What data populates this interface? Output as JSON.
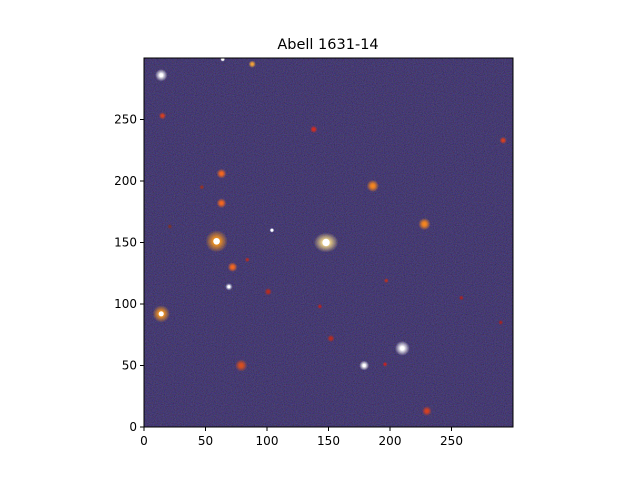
{
  "figure": {
    "title": "Abell 1631-14",
    "x_ticks": [
      "0",
      "50",
      "100",
      "150",
      "200",
      "250"
    ],
    "y_ticks": [
      "0",
      "50",
      "100",
      "150",
      "200",
      "250"
    ],
    "x_range": [
      0,
      300
    ],
    "y_range": [
      0,
      300
    ],
    "colors": {
      "sky_background": "#0d0a22",
      "noise_blue": "#2a2a8a",
      "star_white": "#ffffff",
      "galaxy_orange": "#ff8a1a",
      "galaxy_red": "#d8281a"
    },
    "sources": [
      {
        "x": 148,
        "y": 150,
        "r": 10,
        "type": "elliptical-galaxy",
        "color": "#ffe28a"
      },
      {
        "x": 59,
        "y": 151,
        "r": 9,
        "type": "galaxy",
        "color": "#ff9a1a"
      },
      {
        "x": 14,
        "y": 92,
        "r": 7,
        "type": "galaxy",
        "color": "#ff9a1a"
      },
      {
        "x": 14,
        "y": 286,
        "r": 5,
        "type": "star",
        "color": "#ffffff"
      },
      {
        "x": 210,
        "y": 64,
        "r": 6,
        "type": "star",
        "color": "#ffffff"
      },
      {
        "x": 179,
        "y": 50,
        "r": 4,
        "type": "star",
        "color": "#ffffff"
      },
      {
        "x": 186,
        "y": 196,
        "r": 5,
        "type": "galaxy",
        "color": "#ff8a1a"
      },
      {
        "x": 228,
        "y": 165,
        "r": 5,
        "type": "galaxy",
        "color": "#ff8a1a"
      },
      {
        "x": 63,
        "y": 206,
        "r": 4,
        "type": "galaxy",
        "color": "#ff6a1a"
      },
      {
        "x": 63,
        "y": 182,
        "r": 4,
        "type": "galaxy",
        "color": "#ff6a1a"
      },
      {
        "x": 79,
        "y": 50,
        "r": 5,
        "type": "galaxy",
        "color": "#e0501a"
      },
      {
        "x": 72,
        "y": 130,
        "r": 4,
        "type": "galaxy",
        "color": "#ff6a1a"
      },
      {
        "x": 69,
        "y": 114,
        "r": 3,
        "type": "star",
        "color": "#e8f0ff"
      },
      {
        "x": 138,
        "y": 242,
        "r": 3,
        "type": "galaxy",
        "color": "#e02a1a"
      },
      {
        "x": 88,
        "y": 295,
        "r": 3,
        "type": "galaxy",
        "color": "#ffaa33"
      },
      {
        "x": 64,
        "y": 299,
        "r": 2,
        "type": "star",
        "color": "#ffffff"
      },
      {
        "x": 15,
        "y": 253,
        "r": 3,
        "type": "galaxy",
        "color": "#e0401a"
      },
      {
        "x": 101,
        "y": 110,
        "r": 3,
        "type": "galaxy",
        "color": "#c02a1a"
      },
      {
        "x": 152,
        "y": 72,
        "r": 3,
        "type": "galaxy",
        "color": "#c02a1a"
      },
      {
        "x": 196,
        "y": 51,
        "r": 2,
        "type": "galaxy",
        "color": "#d0201a"
      },
      {
        "x": 230,
        "y": 13,
        "r": 4,
        "type": "galaxy",
        "color": "#e0401a"
      },
      {
        "x": 292,
        "y": 233,
        "r": 3,
        "type": "galaxy",
        "color": "#e0401a"
      },
      {
        "x": 197,
        "y": 119,
        "r": 2,
        "type": "galaxy",
        "color": "#c0301a"
      },
      {
        "x": 143,
        "y": 98,
        "r": 2,
        "type": "galaxy",
        "color": "#c0201a"
      },
      {
        "x": 84,
        "y": 136,
        "r": 2,
        "type": "galaxy",
        "color": "#c02a1a"
      },
      {
        "x": 290,
        "y": 85,
        "r": 2,
        "type": "galaxy",
        "color": "#b0201a"
      },
      {
        "x": 258,
        "y": 105,
        "r": 2,
        "type": "galaxy",
        "color": "#b0201a"
      },
      {
        "x": 47,
        "y": 195,
        "r": 2,
        "type": "galaxy",
        "color": "#a0301a"
      },
      {
        "x": 104,
        "y": 160,
        "r": 2,
        "type": "star",
        "color": "#c0d0ff"
      },
      {
        "x": 21,
        "y": 163,
        "r": 2,
        "type": "galaxy",
        "color": "#803020"
      }
    ]
  }
}
